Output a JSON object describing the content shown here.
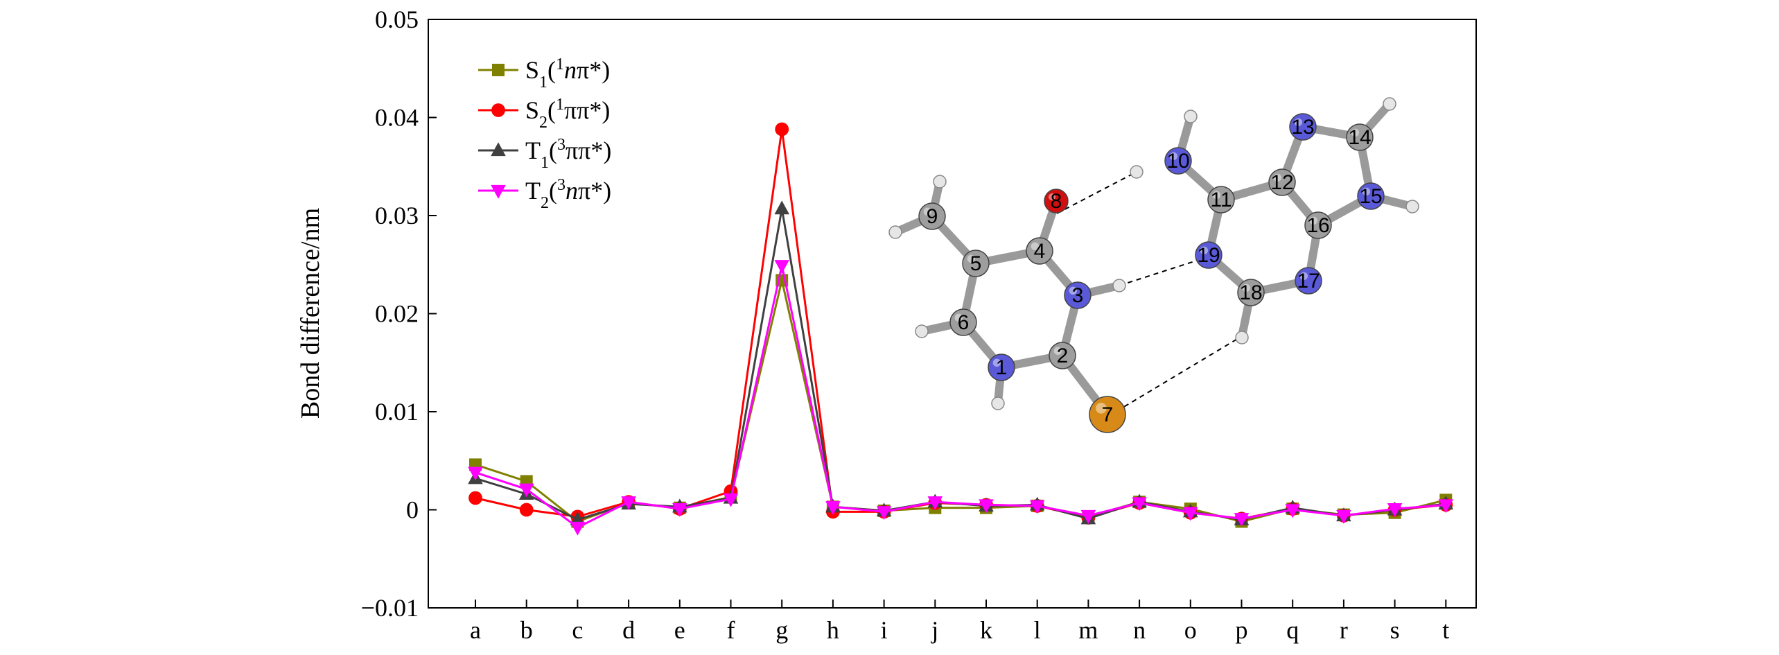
{
  "chart_data": {
    "type": "line",
    "xlabel": "",
    "ylabel": "Bond difference/nm",
    "ylim": [
      -0.01,
      0.05
    ],
    "yticks": [
      "−0.01",
      "0",
      "0.01",
      "0.02",
      "0.03",
      "0.04",
      "0.05"
    ],
    "ytick_values": [
      -0.01,
      0,
      0.01,
      0.02,
      0.03,
      0.04,
      0.05
    ],
    "categories": [
      "a",
      "b",
      "c",
      "d",
      "e",
      "f",
      "g",
      "h",
      "i",
      "j",
      "k",
      "l",
      "m",
      "n",
      "o",
      "p",
      "q",
      "r",
      "s",
      "t"
    ],
    "legend_position": "top-left",
    "series": [
      {
        "name": "S1(1nπ*)",
        "label_main": "S",
        "label_sub": "1",
        "label_open": "(",
        "label_sup": "1",
        "label_it": "n",
        "label_rest": "π*)",
        "color": "#808000",
        "marker": "square",
        "values": [
          0.0046,
          0.0029,
          -0.0012,
          0.0007,
          0.0002,
          0.0013,
          0.0234,
          0.0003,
          -0.0001,
          0.0002,
          0.0002,
          0.0004,
          -0.0007,
          0.0008,
          0.0001,
          -0.0012,
          0.0001,
          -0.0005,
          -0.0003,
          0.001
        ]
      },
      {
        "name": "S2(1ππ*)",
        "label_main": "S",
        "label_sub": "2",
        "label_open": "(",
        "label_sup": "1",
        "label_it": "",
        "label_rest": "ππ*)",
        "color": "#ff0000",
        "marker": "circle",
        "values": [
          0.0012,
          0.0,
          -0.0007,
          0.0008,
          0.0001,
          0.0019,
          0.0388,
          -0.0002,
          -0.0002,
          0.0007,
          0.0005,
          0.0004,
          -0.0008,
          0.0007,
          -0.0003,
          -0.0009,
          0.0001,
          -0.0006,
          0.0,
          0.0005
        ]
      },
      {
        "name": "T1(3ππ*)",
        "label_main": "T",
        "label_sub": "1",
        "label_open": "(",
        "label_sup": "3",
        "label_it": "",
        "label_rest": "ππ*)",
        "color": "#404040",
        "marker": "triangle-up",
        "values": [
          0.0032,
          0.0016,
          -0.001,
          0.0006,
          0.0003,
          0.0012,
          0.0307,
          0.0003,
          -0.0001,
          0.0008,
          0.0004,
          0.0005,
          -0.0009,
          0.0008,
          -0.0002,
          -0.001,
          0.0002,
          -0.0006,
          0.0,
          0.0006
        ]
      },
      {
        "name": "T2(3nπ*)",
        "label_main": "T",
        "label_sub": "2",
        "label_open": "(",
        "label_sup": "3",
        "label_it": "n",
        "label_rest": "π*)",
        "color": "#ff00ff",
        "marker": "triangle-down",
        "values": [
          0.0038,
          0.0021,
          -0.0018,
          0.0008,
          0.0001,
          0.0011,
          0.0249,
          0.0003,
          -0.0002,
          0.0008,
          0.0005,
          0.0004,
          -0.0006,
          0.0007,
          -0.0003,
          -0.0009,
          0.0,
          -0.0006,
          0.0001,
          0.0005
        ]
      }
    ]
  },
  "molecule": {
    "atom_labels": [
      "1",
      "2",
      "3",
      "4",
      "5",
      "6",
      "7",
      "8",
      "9",
      "10",
      "11",
      "12",
      "13",
      "14",
      "15",
      "16",
      "17",
      "18",
      "19"
    ],
    "colors": {
      "carbon": "#9e9e9e",
      "nitrogen": "#5a5ad8",
      "oxygen": "#d01010",
      "sulfur": "#d88a18",
      "hydrogen": "#e6e6e6"
    }
  }
}
